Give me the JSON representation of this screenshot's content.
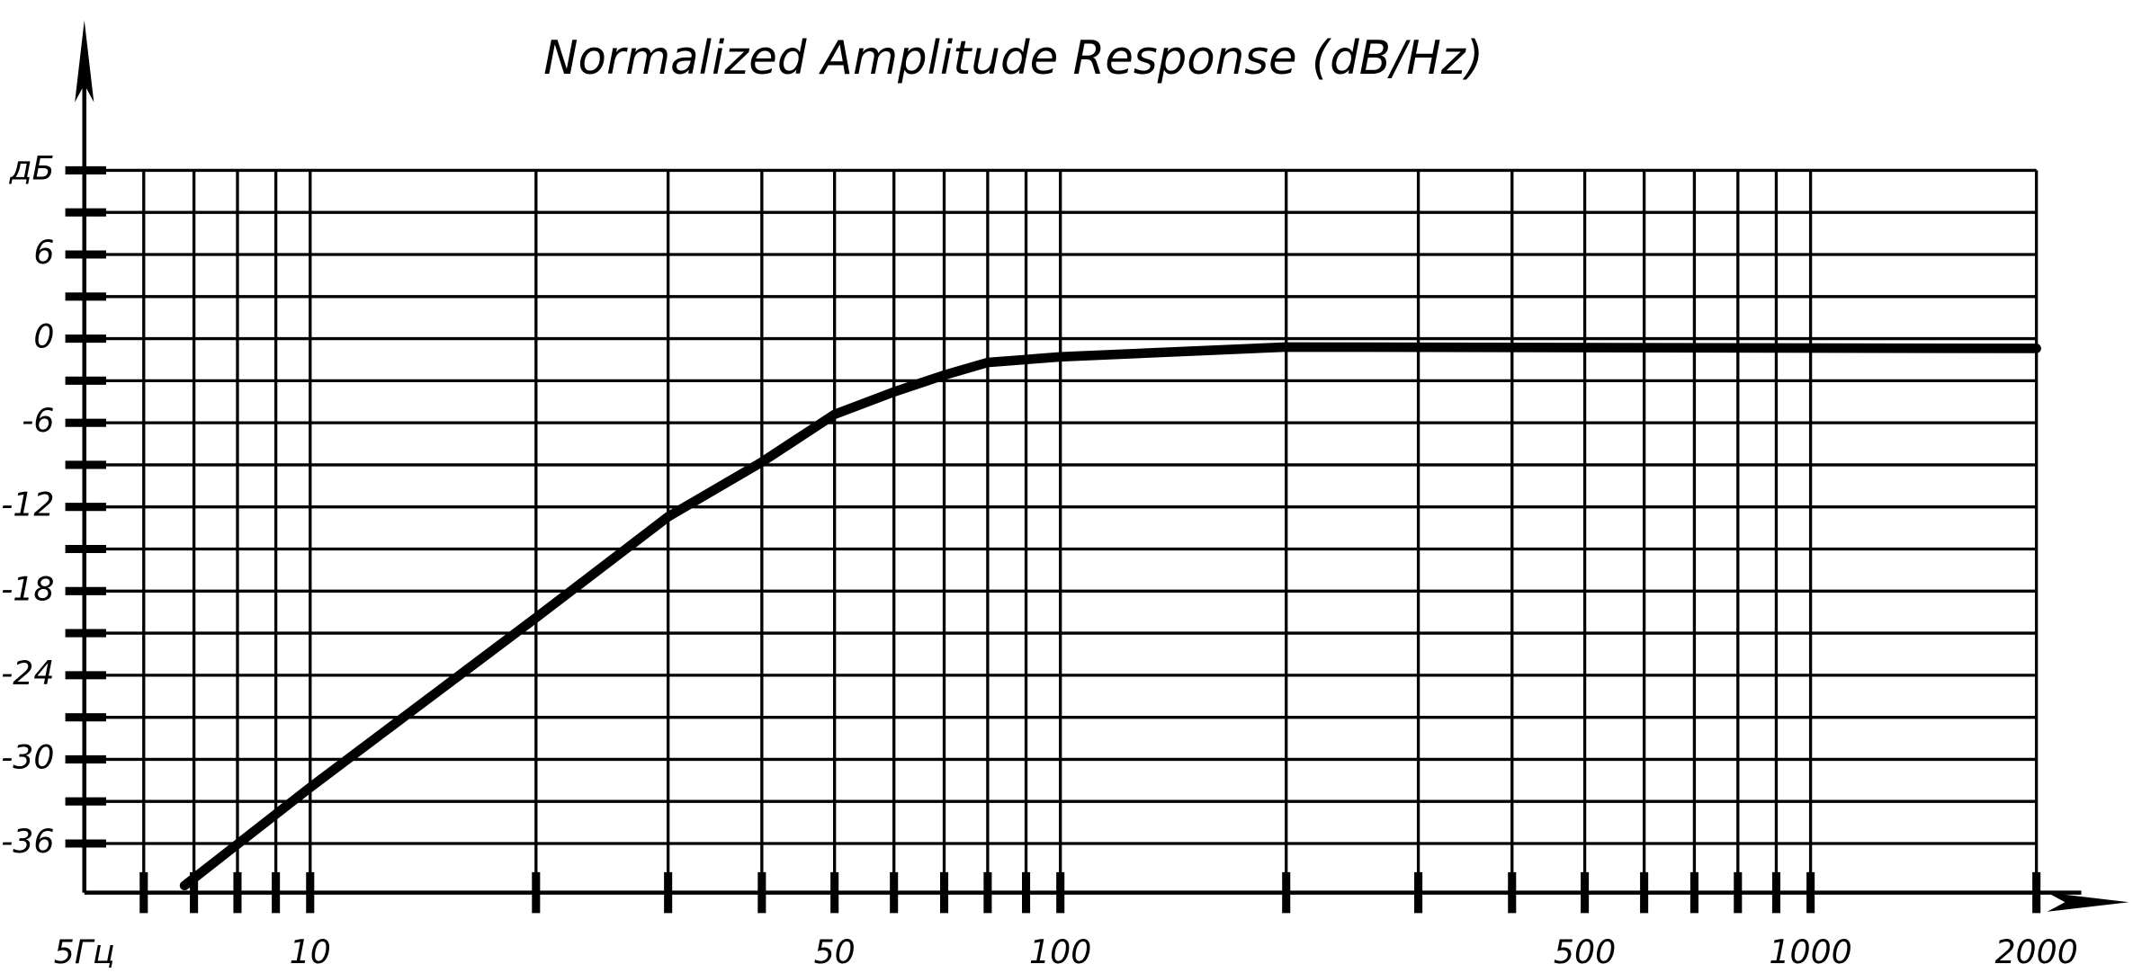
{
  "chart_data": {
    "type": "line",
    "title": "Normalized Amplitude Response (dB/Hz)",
    "x": [
      6.8,
      10,
      20,
      30,
      40,
      50,
      60,
      70,
      80,
      100,
      200,
      2000
    ],
    "series": [
      {
        "color": "#000000",
        "values": [
          -39,
          -32,
          -19.9,
          -12.7,
          -8.8,
          -5.4,
          -3.8,
          -2.6,
          -1.7,
          -1.3,
          -0.6,
          -0.7
        ]
      }
    ],
    "xscale": "log",
    "xlim": [
      5,
      2000
    ],
    "xticks": [
      {
        "value": 5,
        "label": "5Гц"
      },
      10,
      50,
      100,
      500,
      1000,
      2000
    ],
    "xminor": [
      6,
      7,
      8,
      9,
      20,
      30,
      40,
      60,
      70,
      80,
      90,
      200,
      300,
      400,
      600,
      700,
      800,
      900
    ],
    "ylim": [
      -39.5,
      12
    ],
    "yticks": [
      {
        "value": 12,
        "label": "дБ"
      },
      6,
      0,
      -6,
      -12,
      -18,
      -24,
      -30,
      -36
    ],
    "yminor": [
      9,
      3,
      -3,
      -9,
      -15,
      -21,
      -27,
      -33
    ],
    "grid": true
  }
}
